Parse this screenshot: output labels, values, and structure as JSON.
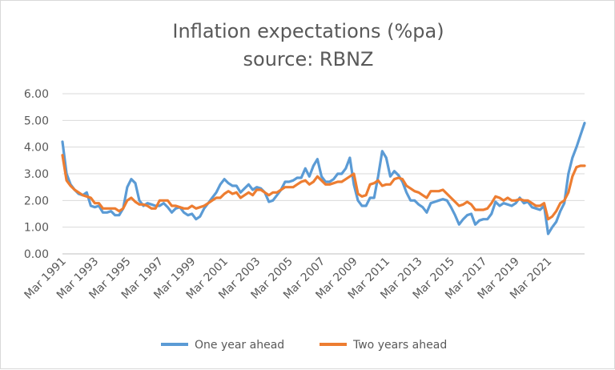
{
  "chart_data": {
    "type": "line",
    "title": "Inflation expectations (%pa)",
    "subtitle": "source: RBNZ",
    "xlabel": "",
    "ylabel": "",
    "ylim": [
      0,
      6
    ],
    "yticks": [
      "0.00",
      "1.00",
      "2.00",
      "3.00",
      "4.00",
      "5.00",
      "6.00"
    ],
    "xticks": [
      "Mar 1991",
      "Mar 1993",
      "Mar 1995",
      "Mar 1997",
      "Mar 1999",
      "Mar 2001",
      "Mar 2003",
      "Mar 2005",
      "Mar 2007",
      "Mar 2009",
      "Mar 2011",
      "Mar 2013",
      "Mar 2015",
      "Mar 2017",
      "Mar 2019",
      "Mar 2021"
    ],
    "x_start": "Mar 1991",
    "x_step": "quarter",
    "grid": true,
    "legend_position": "bottom",
    "series": [
      {
        "name": "One year ahead",
        "color": "#5b9bd5",
        "values": [
          4.2,
          3.0,
          2.6,
          2.4,
          2.25,
          2.2,
          2.3,
          1.8,
          1.75,
          1.8,
          1.55,
          1.55,
          1.6,
          1.45,
          1.45,
          1.7,
          2.5,
          2.8,
          2.65,
          2.0,
          1.8,
          1.9,
          1.85,
          1.8,
          1.8,
          1.9,
          1.75,
          1.55,
          1.7,
          1.75,
          1.55,
          1.45,
          1.5,
          1.3,
          1.4,
          1.7,
          1.9,
          2.1,
          2.3,
          2.6,
          2.8,
          2.65,
          2.55,
          2.55,
          2.3,
          2.45,
          2.6,
          2.4,
          2.5,
          2.45,
          2.3,
          1.95,
          2.0,
          2.2,
          2.4,
          2.7,
          2.7,
          2.75,
          2.85,
          2.85,
          3.2,
          2.9,
          3.3,
          3.55,
          2.9,
          2.7,
          2.7,
          2.8,
          3.0,
          3.0,
          3.2,
          3.6,
          2.6,
          2.0,
          1.8,
          1.8,
          2.1,
          2.1,
          2.9,
          3.85,
          3.6,
          2.9,
          3.1,
          2.95,
          2.7,
          2.3,
          2.0,
          2.0,
          1.85,
          1.75,
          1.55,
          1.9,
          1.95,
          2.0,
          2.05,
          2.0,
          1.75,
          1.45,
          1.1,
          1.3,
          1.45,
          1.5,
          1.1,
          1.25,
          1.3,
          1.3,
          1.5,
          1.95,
          1.8,
          1.9,
          1.85,
          1.8,
          1.9,
          2.1,
          1.9,
          1.95,
          1.75,
          1.7,
          1.65,
          1.8,
          0.75,
          1.0,
          1.2,
          1.6,
          1.9,
          3.0,
          3.6,
          4.0,
          4.45,
          4.9
        ]
      },
      {
        "name": "Two years ahead",
        "color": "#ed7d31",
        "values": [
          3.7,
          2.75,
          2.55,
          2.4,
          2.3,
          2.2,
          2.15,
          2.1,
          1.9,
          1.9,
          1.7,
          1.7,
          1.7,
          1.7,
          1.6,
          1.7,
          2.0,
          2.1,
          1.95,
          1.85,
          1.85,
          1.8,
          1.7,
          1.7,
          2.0,
          2.0,
          2.0,
          1.8,
          1.8,
          1.75,
          1.7,
          1.7,
          1.8,
          1.7,
          1.75,
          1.8,
          1.9,
          2.0,
          2.1,
          2.1,
          2.25,
          2.35,
          2.25,
          2.3,
          2.1,
          2.2,
          2.3,
          2.2,
          2.4,
          2.4,
          2.3,
          2.2,
          2.3,
          2.3,
          2.4,
          2.5,
          2.5,
          2.5,
          2.6,
          2.7,
          2.75,
          2.6,
          2.7,
          2.9,
          2.75,
          2.6,
          2.6,
          2.65,
          2.7,
          2.7,
          2.8,
          2.9,
          3.0,
          2.25,
          2.15,
          2.2,
          2.6,
          2.65,
          2.75,
          2.55,
          2.6,
          2.6,
          2.8,
          2.85,
          2.8,
          2.55,
          2.45,
          2.35,
          2.3,
          2.2,
          2.1,
          2.35,
          2.35,
          2.35,
          2.4,
          2.25,
          2.1,
          1.95,
          1.8,
          1.85,
          1.95,
          1.85,
          1.65,
          1.65,
          1.65,
          1.7,
          1.9,
          2.15,
          2.1,
          2.0,
          2.1,
          2.0,
          2.0,
          2.05,
          2.0,
          2.0,
          1.9,
          1.8,
          1.8,
          1.9,
          1.3,
          1.4,
          1.6,
          1.9,
          2.0,
          2.3,
          2.9,
          3.25,
          3.3,
          3.3
        ]
      }
    ]
  }
}
